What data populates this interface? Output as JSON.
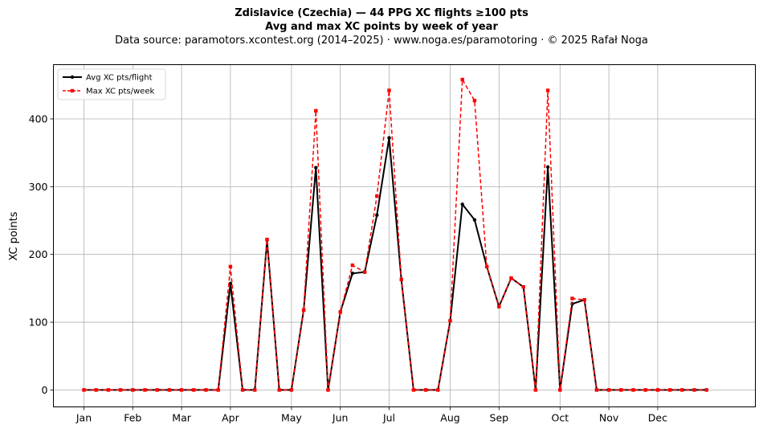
{
  "chart_data": {
    "type": "line",
    "title": "Zdislavice (Czechia)  —  44 PPG XC flights ≥100 pts",
    "subtitle": "Avg and max XC points by week of year",
    "source": "Data source: paramotors.xcontest.org (2014–2025)  ·  www.noga.es/paramotoring  ·  © 2025 Rafał Noga",
    "xlabel": "",
    "ylabel": "XC points",
    "xlim": [
      -2.5,
      55
    ],
    "ylim": [
      -25,
      480
    ],
    "grid": true,
    "legend_position": "top-left",
    "x_ticks": [
      {
        "label": "Jan",
        "x": 0
      },
      {
        "label": "Feb",
        "x": 4
      },
      {
        "label": "Mar",
        "x": 8
      },
      {
        "label": "Apr",
        "x": 12
      },
      {
        "label": "May",
        "x": 17
      },
      {
        "label": "Jun",
        "x": 21
      },
      {
        "label": "Jul",
        "x": 25
      },
      {
        "label": "Aug",
        "x": 30
      },
      {
        "label": "Sep",
        "x": 34
      },
      {
        "label": "Oct",
        "x": 39
      },
      {
        "label": "Nov",
        "x": 43
      },
      {
        "label": "Dec",
        "x": 47
      }
    ],
    "y_ticks": [
      0,
      100,
      200,
      300,
      400
    ],
    "x": [
      0,
      1,
      2,
      3,
      4,
      5,
      6,
      7,
      8,
      9,
      10,
      11,
      12,
      13,
      14,
      15,
      16,
      17,
      18,
      19,
      20,
      21,
      22,
      23,
      24,
      25,
      26,
      27,
      28,
      29,
      30,
      31,
      32,
      33,
      34,
      35,
      36,
      37,
      38,
      39,
      40,
      41,
      42,
      43,
      44,
      45,
      46,
      47,
      48,
      49,
      50,
      51
    ],
    "series": [
      {
        "name": "Avg XC pts/flight",
        "color": "#000000",
        "style": "solid-circle",
        "values": [
          0,
          0,
          0,
          0,
          0,
          0,
          0,
          0,
          0,
          0,
          0,
          0,
          157,
          0,
          0,
          221,
          0,
          0,
          118,
          328,
          0,
          115,
          172,
          174,
          258,
          372,
          163,
          0,
          0,
          0,
          102,
          274,
          251,
          182,
          123,
          165,
          152,
          0,
          329,
          0,
          127,
          133,
          0,
          0,
          0,
          0,
          0,
          0,
          0,
          0,
          0,
          0
        ]
      },
      {
        "name": "Max XC pts/week",
        "color": "#ff0000",
        "style": "dashed-square",
        "values": [
          0,
          0,
          0,
          0,
          0,
          0,
          0,
          0,
          0,
          0,
          0,
          0,
          182,
          0,
          0,
          222,
          0,
          0,
          118,
          412,
          0,
          115,
          184,
          174,
          286,
          442,
          163,
          0,
          0,
          0,
          102,
          458,
          427,
          182,
          123,
          165,
          152,
          0,
          442,
          0,
          135,
          133,
          0,
          0,
          0,
          0,
          0,
          0,
          0,
          0,
          0,
          0
        ]
      }
    ]
  }
}
